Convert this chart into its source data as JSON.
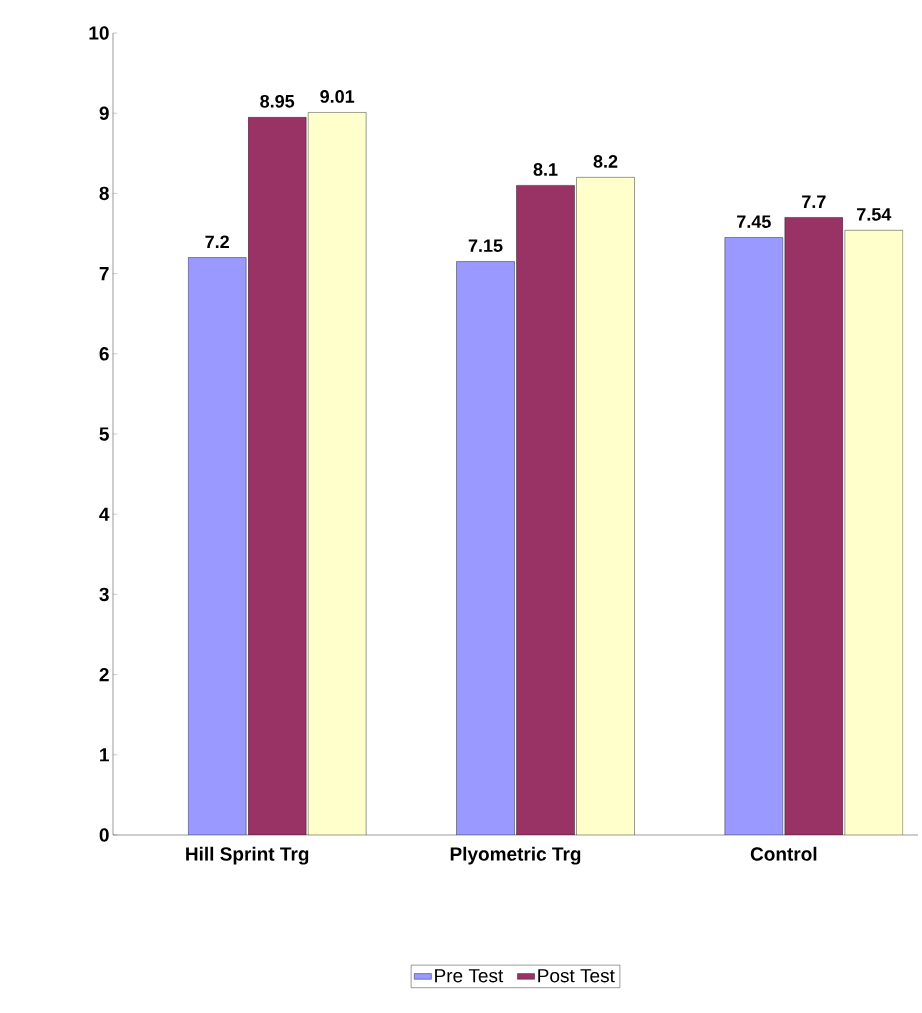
{
  "chart_data": {
    "type": "bar",
    "categories": [
      "Hill Sprint Trg",
      "Plyometric Trg",
      "Control"
    ],
    "series": [
      {
        "name": "Pre Test",
        "color": "#9999ff",
        "values": [
          7.2,
          7.15,
          7.45
        ]
      },
      {
        "name": "Post Test",
        "color": "#993366",
        "values": [
          8.95,
          8.1,
          7.7
        ]
      },
      {
        "color": "#ffffcc",
        "values": [
          9.01,
          8.2,
          7.54
        ]
      }
    ],
    "ylim": [
      0,
      10
    ],
    "yticks": [
      0,
      1,
      2,
      3,
      4,
      5,
      6,
      7,
      8,
      9,
      10
    ],
    "data_labels": true,
    "legend": "bottom",
    "grid": false
  }
}
